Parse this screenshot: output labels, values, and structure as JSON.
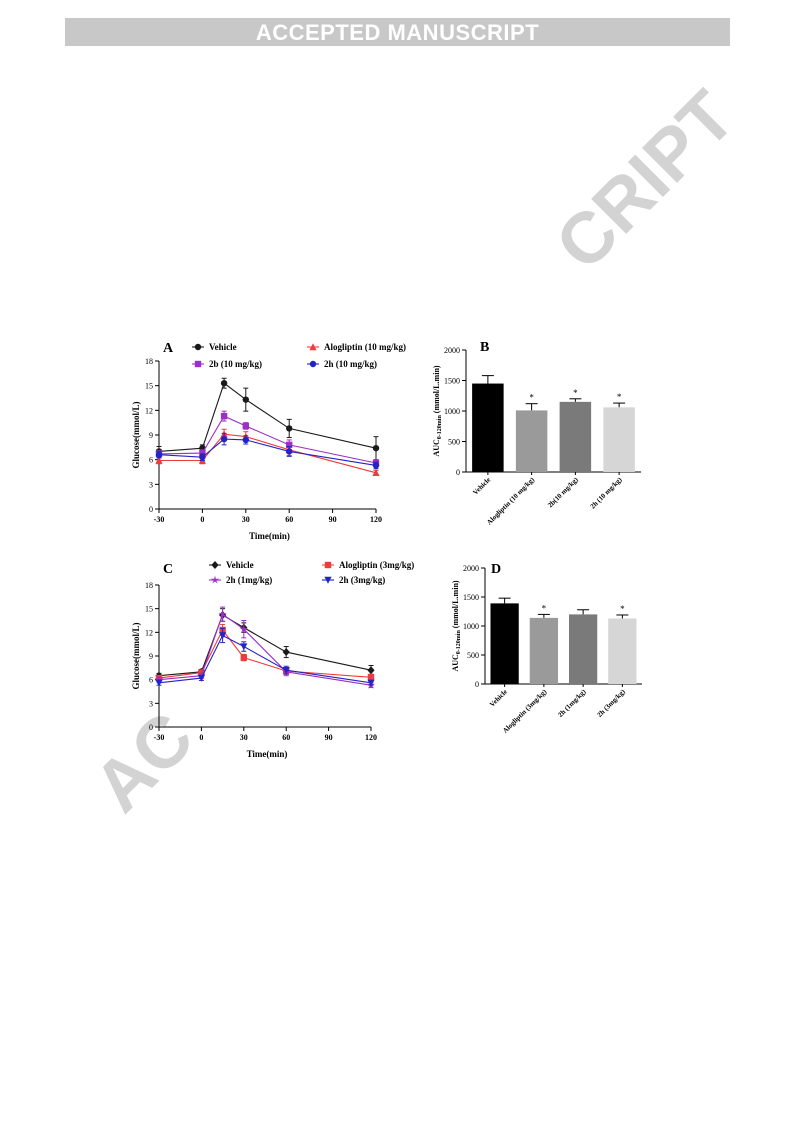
{
  "header": {
    "banner": "ACCEPTED MANUSCRIPT"
  },
  "watermark": {
    "right": "CRIPT",
    "left": "AC"
  },
  "chart_data": [
    {
      "panel": "A",
      "type": "line",
      "xlabel": "Time(min)",
      "ylabel": "Glucose(mmol/L)",
      "xlim": [
        -30,
        120
      ],
      "ylim": [
        0,
        18
      ],
      "xticks": [
        -30,
        0,
        30,
        60,
        90,
        120
      ],
      "yticks": [
        0,
        3,
        6,
        9,
        12,
        15,
        18
      ],
      "x": [
        -30,
        0,
        15,
        30,
        60,
        120
      ],
      "series": [
        {
          "name": "Vehicle",
          "color": "#1a1a1a",
          "marker": "circle",
          "values": [
            7.0,
            7.4,
            15.3,
            13.3,
            9.8,
            7.4
          ],
          "err": [
            0.6,
            0.4,
            0.6,
            1.4,
            1.1,
            1.4
          ]
        },
        {
          "name": "Alogliptin (10 mg/kg)",
          "color": "#ef3b3b",
          "marker": "triangle-up",
          "values": [
            5.9,
            5.9,
            9.1,
            8.8,
            7.2,
            4.4
          ],
          "err": [
            0.4,
            0.4,
            0.6,
            0.6,
            0.7,
            0.3
          ]
        },
        {
          "name": "2b (10 mg/kg)",
          "color": "#9b2fc7",
          "marker": "square",
          "values": [
            6.7,
            6.8,
            11.3,
            10.1,
            7.8,
            5.6
          ],
          "err": [
            0.4,
            0.4,
            0.6,
            0.4,
            0.6,
            0.4
          ]
        },
        {
          "name": "2h (10 mg/kg)",
          "color": "#2424c4",
          "marker": "circle",
          "values": [
            6.6,
            6.3,
            8.5,
            8.4,
            7.0,
            5.3
          ],
          "err": [
            0.4,
            0.4,
            0.7,
            0.5,
            0.6,
            0.4
          ]
        }
      ],
      "legend": "top"
    },
    {
      "panel": "B",
      "type": "bar",
      "ylabel_main": "AUC",
      "ylabel_sub": "0-120min",
      "ylabel_tail": " (mmol/L.min)",
      "ylim": [
        0,
        2000
      ],
      "yticks": [
        0,
        500,
        1000,
        1500,
        2000
      ],
      "categories": [
        "Vehicle",
        "Alogliptin (10 mg/kg)",
        "2b(10 mg/kg)",
        "2h (10 mg/kg)"
      ],
      "values": [
        1450,
        1010,
        1150,
        1060
      ],
      "err": [
        130,
        110,
        50,
        70
      ],
      "colors": [
        "#000000",
        "#9a9a9a",
        "#7a7a7a",
        "#d6d6d6"
      ],
      "significance": [
        "",
        "*",
        "*",
        "*"
      ]
    },
    {
      "panel": "C",
      "type": "line",
      "xlabel": "Time(min)",
      "ylabel": "Glucose(mmol/L)",
      "xlim": [
        -30,
        120
      ],
      "ylim": [
        0,
        18
      ],
      "xticks": [
        -30,
        0,
        30,
        60,
        90,
        120
      ],
      "yticks": [
        0,
        3,
        6,
        9,
        12,
        15,
        18
      ],
      "x": [
        -30,
        0,
        15,
        30,
        60,
        120
      ],
      "series": [
        {
          "name": "Vehicle",
          "color": "#1a1a1a",
          "marker": "diamond",
          "values": [
            6.5,
            7.0,
            14.2,
            12.6,
            9.5,
            7.2
          ],
          "err": [
            0.3,
            0.3,
            0.8,
            0.6,
            0.7,
            0.6
          ]
        },
        {
          "name": "Alogliptin (3mg/kg)",
          "color": "#ef3b3b",
          "marker": "square",
          "values": [
            6.2,
            6.9,
            12.3,
            8.8,
            7.1,
            6.3
          ],
          "err": [
            0.3,
            0.3,
            0.7,
            0.4,
            0.4,
            0.4
          ]
        },
        {
          "name": "2h (1mg/kg)",
          "color": "#9b2fc7",
          "marker": "star",
          "values": [
            6.0,
            6.5,
            14.3,
            12.4,
            7.0,
            5.3
          ],
          "err": [
            0.3,
            0.3,
            0.9,
            1.1,
            0.5,
            0.3
          ]
        },
        {
          "name": "2h (3mg/kg)",
          "color": "#2424c4",
          "marker": "triangle-down",
          "values": [
            5.6,
            6.2,
            11.6,
            10.2,
            7.2,
            5.6
          ],
          "err": [
            0.3,
            0.3,
            0.9,
            0.6,
            0.5,
            0.3
          ]
        }
      ],
      "legend": "top"
    },
    {
      "panel": "D",
      "type": "bar",
      "ylabel_main": "AUC",
      "ylabel_sub": "0-120min",
      "ylabel_tail": " (mmol/L.min)",
      "ylim": [
        0,
        2000
      ],
      "yticks": [
        0,
        500,
        1000,
        1500,
        2000
      ],
      "categories": [
        "Vehicle",
        "Alogliptin (3mg/kg)",
        "2h (1mg/kg)",
        "2h (3mg/kg)"
      ],
      "values": [
        1390,
        1140,
        1200,
        1130
      ],
      "err": [
        90,
        60,
        80,
        60
      ],
      "colors": [
        "#000000",
        "#9a9a9a",
        "#7a7a7a",
        "#d6d6d6"
      ],
      "significance": [
        "",
        "*",
        "",
        "*"
      ]
    }
  ]
}
